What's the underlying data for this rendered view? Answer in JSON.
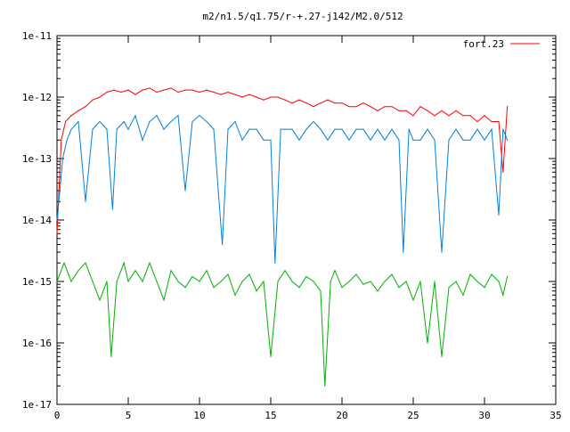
{
  "chart_data": {
    "type": "line",
    "title": "m2/n1.5/q1.75/r-+.27-j142/M2.0/512",
    "xlabel": "",
    "ylabel": "",
    "xlim": [
      0,
      35
    ],
    "ylim": [
      1e-17,
      1e-11
    ],
    "y_scale": "log",
    "grid": false,
    "legend_position": "top-right",
    "x_ticks": [
      0,
      5,
      10,
      15,
      20,
      25,
      30,
      35
    ],
    "x_tick_labels": [
      "0",
      "5",
      "10",
      "15",
      "20",
      "25",
      "30",
      "35"
    ],
    "y_ticks": [
      1e-17,
      1e-16,
      1e-15,
      1e-14,
      1e-13,
      1e-12,
      1e-11
    ],
    "y_tick_labels": [
      "1e-17",
      "1e-16",
      "1e-15",
      "1e-14",
      "1e-13",
      "1e-12",
      "1e-11"
    ],
    "series": [
      {
        "name": "fort.23",
        "color": "#ff0000",
        "x": [
          0,
          0.3,
          0.6,
          1.0,
          1.5,
          2.0,
          2.5,
          3.0,
          3.5,
          4.0,
          4.5,
          5.0,
          5.5,
          6.0,
          6.5,
          7.0,
          7.5,
          8.0,
          8.5,
          9.0,
          9.5,
          10.0,
          10.5,
          11.0,
          11.5,
          12.0,
          12.5,
          13.0,
          13.5,
          14.0,
          14.5,
          15.0,
          15.5,
          16.0,
          16.5,
          17.0,
          17.5,
          18.0,
          18.5,
          19.0,
          19.5,
          20.0,
          20.5,
          21.0,
          21.5,
          22.0,
          22.5,
          23.0,
          23.5,
          24.0,
          24.5,
          25.0,
          25.5,
          26.0,
          26.5,
          27.0,
          27.5,
          28.0,
          28.5,
          29.0,
          29.5,
          30.0,
          30.5,
          31.0,
          31.3,
          31.6
        ],
        "y": [
          6e-15,
          2e-13,
          4e-13,
          5e-13,
          6e-13,
          7e-13,
          9e-13,
          1e-12,
          1.2e-12,
          1.3e-12,
          1.2e-12,
          1.3e-12,
          1.1e-12,
          1.3e-12,
          1.4e-12,
          1.2e-12,
          1.3e-12,
          1.4e-12,
          1.2e-12,
          1.3e-12,
          1.3e-12,
          1.2e-12,
          1.3e-12,
          1.2e-12,
          1.1e-12,
          1.2e-12,
          1.1e-12,
          1e-12,
          1.1e-12,
          1e-12,
          9e-13,
          1e-12,
          1e-12,
          9e-13,
          8e-13,
          9e-13,
          8e-13,
          7e-13,
          8e-13,
          9e-13,
          8e-13,
          8e-13,
          7e-13,
          7e-13,
          8e-13,
          7e-13,
          6e-13,
          7e-13,
          7e-13,
          6e-13,
          6e-13,
          5e-13,
          7e-13,
          6e-13,
          5e-13,
          6e-13,
          5e-13,
          6e-13,
          5e-13,
          5e-13,
          4e-13,
          5e-13,
          4e-13,
          4e-13,
          6e-14,
          7e-13
        ]
      },
      {
        "name": "",
        "color": "#0080e0",
        "x": [
          0,
          0.2,
          0.4,
          0.7,
          1.0,
          1.5,
          2.0,
          2.5,
          3.0,
          3.5,
          3.9,
          4.2,
          4.7,
          5.0,
          5.5,
          6.0,
          6.5,
          7.0,
          7.5,
          8.0,
          8.5,
          9.0,
          9.5,
          10.0,
          10.5,
          11.0,
          11.6,
          12.0,
          12.5,
          13.0,
          13.5,
          14.0,
          14.5,
          15.0,
          15.3,
          15.7,
          16.0,
          16.5,
          17.0,
          17.5,
          18.0,
          18.5,
          19.0,
          19.5,
          20.0,
          20.5,
          21.0,
          21.5,
          22.0,
          22.5,
          23.0,
          23.5,
          24.0,
          24.3,
          24.7,
          25.0,
          25.5,
          26.0,
          26.5,
          27.0,
          27.5,
          28.0,
          28.5,
          29.0,
          29.5,
          30.0,
          30.5,
          31.0,
          31.3,
          31.6
        ],
        "y": [
          1e-14,
          3e-14,
          1e-13,
          2e-13,
          3e-13,
          4e-13,
          2e-14,
          3e-13,
          4e-13,
          3e-13,
          1.5e-14,
          3e-13,
          4e-13,
          3e-13,
          5e-13,
          2e-13,
          4e-13,
          5e-13,
          3e-13,
          4e-13,
          5e-13,
          3e-14,
          4e-13,
          5e-13,
          4e-13,
          3e-13,
          4e-15,
          3e-13,
          4e-13,
          2e-13,
          3e-13,
          3e-13,
          2e-13,
          2e-13,
          2e-15,
          3e-13,
          3e-13,
          3e-13,
          2e-13,
          3e-13,
          4e-13,
          3e-13,
          2e-13,
          3e-13,
          3e-13,
          2e-13,
          3e-13,
          3e-13,
          2e-13,
          3e-13,
          2e-13,
          3e-13,
          2e-13,
          3e-15,
          3e-13,
          2e-13,
          2e-13,
          3e-13,
          2e-13,
          3e-15,
          2e-13,
          3e-13,
          2e-13,
          2e-13,
          3e-13,
          2e-13,
          3e-13,
          1.2e-14,
          3e-13,
          2e-13
        ]
      },
      {
        "name": "",
        "color": "#00b000",
        "x": [
          0,
          0.5,
          1.0,
          1.5,
          2.0,
          2.5,
          3.0,
          3.5,
          3.8,
          4.2,
          4.7,
          5.0,
          5.5,
          6.0,
          6.5,
          7.0,
          7.5,
          8.0,
          8.5,
          9.0,
          9.5,
          10.0,
          10.5,
          11.0,
          11.5,
          12.0,
          12.5,
          13.0,
          13.5,
          14.0,
          14.5,
          15.0,
          15.5,
          16.0,
          16.5,
          17.0,
          17.5,
          18.0,
          18.5,
          18.8,
          19.2,
          19.5,
          20.0,
          20.5,
          21.0,
          21.5,
          22.0,
          22.5,
          23.0,
          23.5,
          24.0,
          24.5,
          25.0,
          25.5,
          26.0,
          26.5,
          27.0,
          27.5,
          28.0,
          28.5,
          29.0,
          29.5,
          30.0,
          30.5,
          31.0,
          31.3,
          31.6
        ],
        "y": [
          1e-15,
          2e-15,
          1e-15,
          1.5e-15,
          2e-15,
          1e-15,
          5e-16,
          1e-15,
          6e-17,
          1e-15,
          2e-15,
          1e-15,
          1.5e-15,
          1e-15,
          2e-15,
          1e-15,
          5e-16,
          1.5e-15,
          1e-15,
          8e-16,
          1.2e-15,
          1e-15,
          1.5e-15,
          8e-16,
          1e-15,
          1.3e-15,
          6e-16,
          1e-15,
          1.3e-15,
          7e-16,
          1e-15,
          6e-17,
          1e-15,
          1.5e-15,
          1e-15,
          8e-16,
          1.2e-15,
          1e-15,
          7e-16,
          2e-17,
          1e-15,
          1.5e-15,
          8e-16,
          1e-15,
          1.3e-15,
          9e-16,
          1e-15,
          7e-16,
          1e-15,
          1.3e-15,
          8e-16,
          1e-15,
          5e-16,
          1e-15,
          1e-16,
          1e-15,
          6e-17,
          8e-16,
          1e-15,
          6e-16,
          1.3e-15,
          1e-15,
          8e-16,
          1.3e-15,
          1e-15,
          6e-16,
          1.2e-15
        ]
      }
    ]
  }
}
